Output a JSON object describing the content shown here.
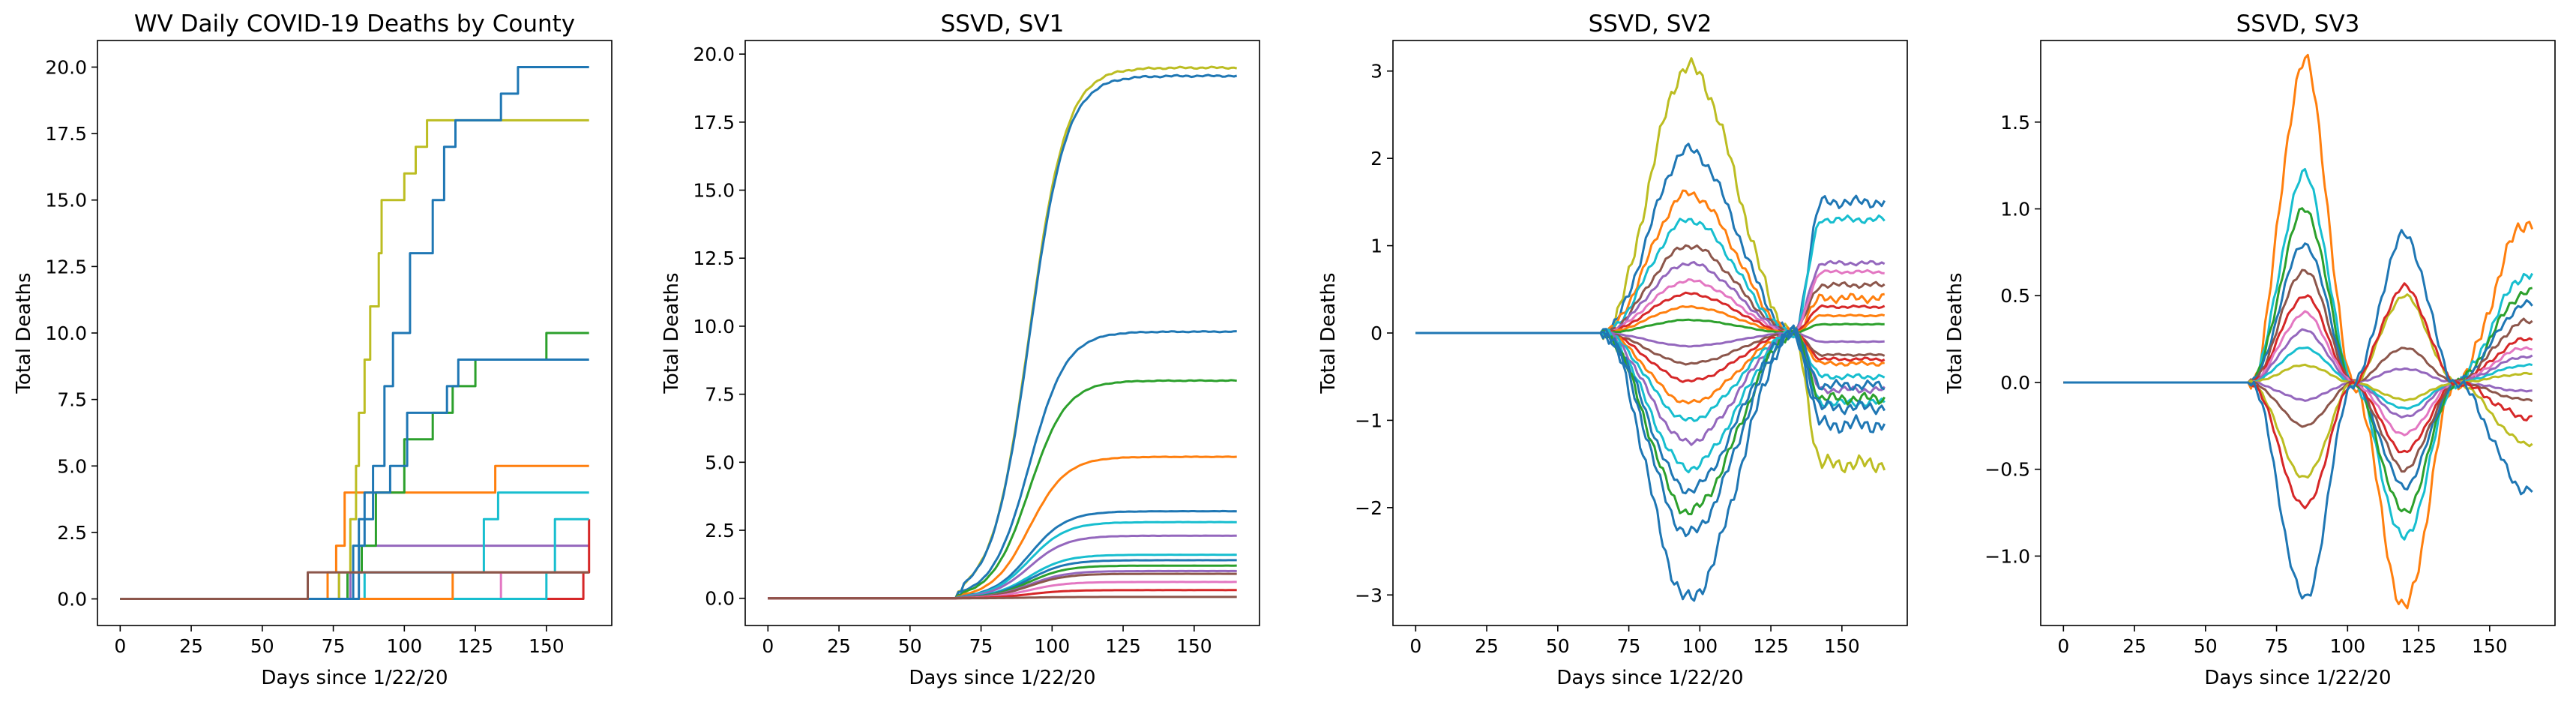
{
  "colors": [
    "#1f77b4",
    "#ff7f0e",
    "#2ca02c",
    "#d62728",
    "#9467bd",
    "#8c564b",
    "#e377c2",
    "#7f7f7f",
    "#bcbd22",
    "#17becf"
  ],
  "chart_data": [
    {
      "type": "line",
      "title": "WV Daily COVID-19 Deaths by County",
      "xlabel": "Days since 1/22/20",
      "ylabel": "Total Deaths",
      "xlim": [
        -8,
        173
      ],
      "ylim": [
        -1,
        21
      ],
      "xticks": [
        0,
        25,
        50,
        75,
        100,
        125,
        150
      ],
      "xtick_labels": [
        "0",
        "25",
        "50",
        "75",
        "100",
        "125",
        "150"
      ],
      "yticks": [
        0,
        2.5,
        5,
        7.5,
        10,
        12.5,
        15,
        17.5,
        20
      ],
      "ytick_labels": [
        "0.0",
        "2.5",
        "5.0",
        "7.5",
        "10.0",
        "12.5",
        "15.0",
        "17.5",
        "20.0"
      ],
      "grid": false,
      "step": true,
      "series": [
        {
          "color": "#17becf",
          "points": [
            [
              0,
              0
            ],
            [
              73,
              0
            ],
            [
              73,
              1
            ],
            [
              165,
              1
            ]
          ]
        },
        {
          "color": "#9467bd",
          "points": [
            [
              0,
              0
            ],
            [
              81,
              0
            ],
            [
              81,
              1
            ],
            [
              165,
              1
            ]
          ]
        },
        {
          "color": "#9467bd",
          "points": [
            [
              0,
              0
            ],
            [
              77,
              0
            ],
            [
              77,
              1
            ],
            [
              85,
              1
            ],
            [
              85,
              2
            ],
            [
              165,
              2
            ]
          ]
        },
        {
          "color": "#e377c2",
          "points": [
            [
              0,
              0
            ],
            [
              134,
              0
            ],
            [
              134,
              1
            ],
            [
              165,
              1
            ]
          ]
        },
        {
          "color": "#d62728",
          "points": [
            [
              0,
              0
            ],
            [
              163,
              0
            ],
            [
              163,
              1
            ],
            [
              165,
              1
            ],
            [
              165,
              3
            ]
          ]
        },
        {
          "color": "#17becf",
          "points": [
            [
              0,
              0
            ],
            [
              86,
              0
            ],
            [
              86,
              1
            ],
            [
              128,
              1
            ],
            [
              128,
              3
            ],
            [
              133,
              3
            ],
            [
              133,
              4
            ],
            [
              165,
              4
            ]
          ]
        },
        {
          "color": "#17becf",
          "points": [
            [
              0,
              0
            ],
            [
              150,
              0
            ],
            [
              150,
              1
            ],
            [
              153,
              1
            ],
            [
              153,
              3
            ],
            [
              165,
              3
            ]
          ]
        },
        {
          "color": "#ff7f0e",
          "points": [
            [
              0,
              0
            ],
            [
              73,
              0
            ],
            [
              73,
              1
            ],
            [
              76,
              1
            ],
            [
              76,
              2
            ],
            [
              79,
              2
            ],
            [
              79,
              4
            ],
            [
              132,
              4
            ],
            [
              132,
              5
            ],
            [
              165,
              5
            ]
          ]
        },
        {
          "color": "#ff7f0e",
          "points": [
            [
              0,
              0
            ],
            [
              117,
              0
            ],
            [
              117,
              1
            ],
            [
              165,
              1
            ]
          ]
        },
        {
          "color": "#2ca02c",
          "points": [
            [
              0,
              0
            ],
            [
              80,
              0
            ],
            [
              80,
              1
            ],
            [
              85,
              1
            ],
            [
              85,
              2
            ],
            [
              90,
              2
            ],
            [
              90,
              4
            ],
            [
              100,
              4
            ],
            [
              100,
              6
            ],
            [
              110,
              6
            ],
            [
              110,
              7
            ],
            [
              117,
              7
            ],
            [
              117,
              8
            ],
            [
              125,
              8
            ],
            [
              125,
              9
            ],
            [
              150,
              9
            ],
            [
              150,
              10
            ],
            [
              165,
              10
            ]
          ]
        },
        {
          "color": "#1f77b4",
          "points": [
            [
              0,
              0
            ],
            [
              82,
              0
            ],
            [
              82,
              2
            ],
            [
              86,
              2
            ],
            [
              86,
              4
            ],
            [
              95,
              4
            ],
            [
              95,
              5
            ],
            [
              101,
              5
            ],
            [
              101,
              7
            ],
            [
              115,
              7
            ],
            [
              115,
              8
            ],
            [
              119,
              8
            ],
            [
              119,
              9
            ],
            [
              165,
              9
            ]
          ]
        },
        {
          "color": "#bcbd22",
          "points": [
            [
              0,
              0
            ],
            [
              77,
              0
            ],
            [
              77,
              1
            ],
            [
              81,
              1
            ],
            [
              81,
              3
            ],
            [
              83,
              3
            ],
            [
              83,
              5
            ],
            [
              84,
              5
            ],
            [
              84,
              7
            ],
            [
              86,
              7
            ],
            [
              86,
              9
            ],
            [
              88,
              9
            ],
            [
              88,
              11
            ],
            [
              91,
              11
            ],
            [
              91,
              13
            ],
            [
              92,
              13
            ],
            [
              92,
              15
            ],
            [
              100,
              15
            ],
            [
              100,
              16
            ],
            [
              104,
              16
            ],
            [
              104,
              17
            ],
            [
              108,
              17
            ],
            [
              108,
              18
            ],
            [
              165,
              18
            ]
          ]
        },
        {
          "color": "#1f77b4",
          "points": [
            [
              0,
              0
            ],
            [
              84,
              0
            ],
            [
              84,
              3
            ],
            [
              89,
              3
            ],
            [
              89,
              5
            ],
            [
              93,
              5
            ],
            [
              93,
              8
            ],
            [
              96,
              8
            ],
            [
              96,
              10
            ],
            [
              102,
              10
            ],
            [
              102,
              13
            ],
            [
              110,
              13
            ],
            [
              110,
              15
            ],
            [
              114,
              15
            ],
            [
              114,
              17
            ],
            [
              118,
              17
            ],
            [
              118,
              18
            ],
            [
              134,
              18
            ],
            [
              134,
              19
            ],
            [
              140,
              19
            ],
            [
              140,
              20
            ],
            [
              165,
              20
            ]
          ]
        },
        {
          "color": "#8c564b",
          "points": [
            [
              0,
              0
            ],
            [
              66,
              0
            ],
            [
              66,
              1
            ],
            [
              165,
              1
            ]
          ]
        }
      ]
    },
    {
      "type": "line",
      "title": "SSVD, SV1",
      "xlabel": "Days since 1/22/20",
      "ylabel": "Total Deaths",
      "xlim": [
        -8,
        173
      ],
      "ylim": [
        -1,
        20.5
      ],
      "xticks": [
        0,
        25,
        50,
        75,
        100,
        125,
        150
      ],
      "xtick_labels": [
        "0",
        "25",
        "50",
        "75",
        "100",
        "125",
        "150"
      ],
      "yticks": [
        0,
        2.5,
        5,
        7.5,
        10,
        12.5,
        15,
        17.5,
        20
      ],
      "ytick_labels": [
        "0.0",
        "2.5",
        "5.0",
        "7.5",
        "10.0",
        "12.5",
        "15.0",
        "17.5",
        "20.0"
      ],
      "grid": false,
      "series_template": "sigmoid",
      "center": 92,
      "width": 6.5,
      "start": 67,
      "scales": [
        19.5,
        19.2,
        9.8,
        8.0,
        5.2,
        3.2,
        2.8,
        2.3,
        1.6,
        1.4,
        1.2,
        1.0,
        0.9,
        0.6,
        0.3,
        0.05
      ],
      "scale_colors": [
        "#bcbd22",
        "#1f77b4",
        "#1f77b4",
        "#2ca02c",
        "#ff7f0e",
        "#1f77b4",
        "#17becf",
        "#9467bd",
        "#17becf",
        "#1f77b4",
        "#2ca02c",
        "#9467bd",
        "#8c564b",
        "#e377c2",
        "#d62728",
        "#8c564b"
      ]
    },
    {
      "type": "line",
      "title": "SSVD, SV2",
      "xlabel": "Days since 1/22/20",
      "ylabel": "Total Deaths",
      "xlim": [
        -8,
        173
      ],
      "ylim": [
        -3.35,
        3.35
      ],
      "xticks": [
        0,
        25,
        50,
        75,
        100,
        125,
        150
      ],
      "xtick_labels": [
        "0",
        "25",
        "50",
        "75",
        "100",
        "125",
        "150"
      ],
      "yticks": [
        -3,
        -2,
        -1,
        0,
        1,
        2,
        3
      ],
      "ytick_labels": [
        "−3",
        "−2",
        "−1",
        "0",
        "1",
        "2",
        "3"
      ],
      "grid": false,
      "series_template": "bump_cross",
      "start": 66,
      "peak": 96,
      "cross": 133,
      "scales": [
        3.05,
        2.1,
        1.6,
        1.3,
        1.0,
        0.8,
        0.6,
        0.45,
        0.3,
        0.15,
        -0.15,
        -0.35,
        -0.55,
        -0.8,
        -1.0,
        -1.25,
        -1.55,
        -1.8,
        -2.05,
        -2.3,
        -3.05
      ],
      "tails": [
        -1.5,
        1.5,
        0.4,
        1.3,
        0.55,
        0.8,
        0.7,
        0.3,
        0.2,
        0.1,
        -0.1,
        -0.25,
        -0.3,
        -0.35,
        -0.5,
        -0.65,
        -0.8,
        -0.6,
        -0.75,
        -0.85,
        -1.05
      ],
      "scale_colors": [
        "#bcbd22",
        "#1f77b4",
        "#ff7f0e",
        "#17becf",
        "#8c564b",
        "#9467bd",
        "#e377c2",
        "#d62728",
        "#ff7f0e",
        "#2ca02c",
        "#9467bd",
        "#8c564b",
        "#d62728",
        "#ff7f0e",
        "#17becf",
        "#9467bd",
        "#17becf",
        "#1f77b4",
        "#2ca02c",
        "#1f77b4",
        "#1f77b4"
      ]
    },
    {
      "type": "line",
      "title": "SSVD, SV3",
      "xlabel": "Days since 1/22/20",
      "ylabel": "Total Deaths",
      "xlim": [
        -8,
        173
      ],
      "ylim": [
        -1.4,
        1.97
      ],
      "xticks": [
        0,
        25,
        50,
        75,
        100,
        125,
        150
      ],
      "xtick_labels": [
        "0",
        "25",
        "50",
        "75",
        "100",
        "125",
        "150"
      ],
      "yticks": [
        -1.0,
        -0.5,
        0.0,
        0.5,
        1.0,
        1.5
      ],
      "ytick_labels": [
        "−1.0",
        "−0.5",
        "0.0",
        "0.5",
        "1.0",
        "1.5"
      ],
      "grid": false,
      "series_template": "wave3",
      "start": 66,
      "peak": 85,
      "trough": 120,
      "cross1": 102,
      "cross2": 138,
      "peaks": [
        1.85,
        1.2,
        1.0,
        0.8,
        0.65,
        0.5,
        0.4,
        0.3,
        0.2,
        0.1,
        -0.1,
        -0.25,
        -0.55,
        -0.72,
        -1.25
      ],
      "troughs": [
        -1.3,
        -0.9,
        -0.75,
        -0.6,
        -0.5,
        -0.4,
        -0.3,
        -0.2,
        -0.15,
        -0.1,
        0.08,
        0.2,
        0.5,
        0.55,
        0.85
      ],
      "tails": [
        0.92,
        0.62,
        0.52,
        0.45,
        0.35,
        0.25,
        0.2,
        0.15,
        0.1,
        0.05,
        -0.05,
        -0.1,
        -0.35,
        -0.2,
        -0.62
      ],
      "scale_colors": [
        "#ff7f0e",
        "#17becf",
        "#2ca02c",
        "#1f77b4",
        "#8c564b",
        "#d62728",
        "#e377c2",
        "#9467bd",
        "#17becf",
        "#bcbd22",
        "#9467bd",
        "#8c564b",
        "#bcbd22",
        "#d62728",
        "#1f77b4"
      ]
    }
  ]
}
